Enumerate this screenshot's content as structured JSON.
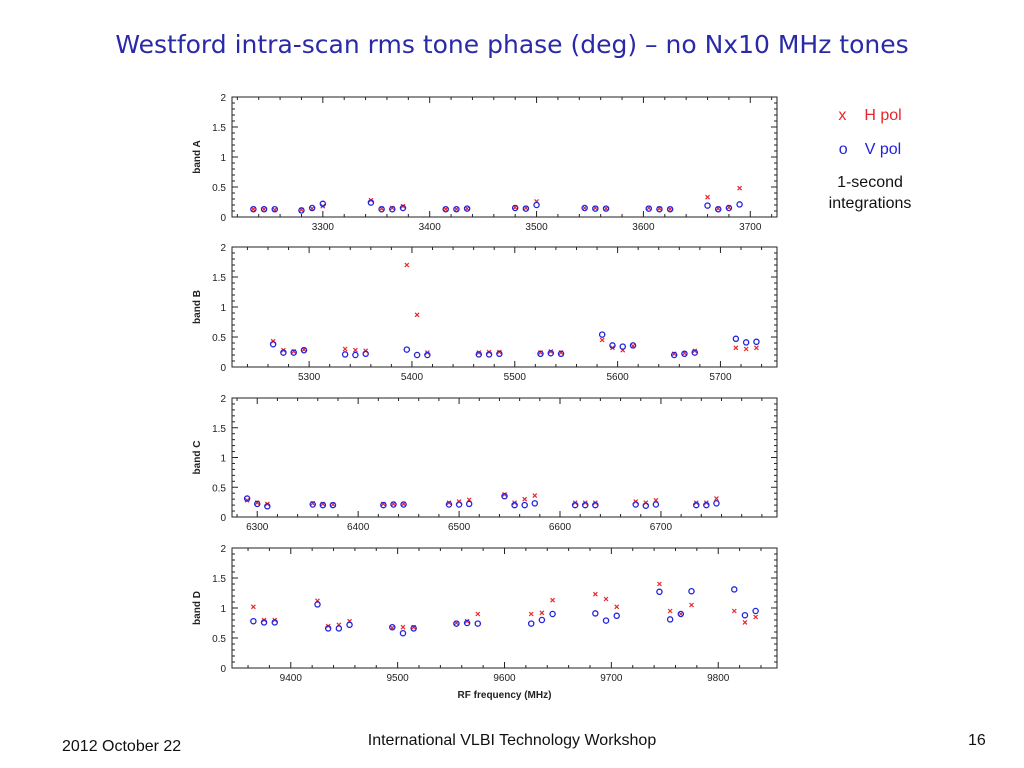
{
  "title": "Westford intra-scan rms tone phase (deg) –  no Nx10 MHz tones",
  "legend": {
    "h_symbol": "x",
    "h_label": "H pol",
    "v_symbol": "o",
    "v_label": "V pol",
    "note_line1": "1-second",
    "note_line2": "integrations"
  },
  "footer": {
    "date": "2012 October 22",
    "center": "International VLBI Technology Workshop",
    "page": "16"
  },
  "colors": {
    "h_pol": "#e8262b",
    "v_pol": "#2222dd",
    "axis": "#222222",
    "title": "#2a2aa8"
  },
  "chart_data": [
    {
      "type": "scatter",
      "ylabel": "band A",
      "xlabel": "",
      "xlim": [
        3215,
        3725
      ],
      "ylim": [
        0,
        2
      ],
      "xticks": [
        3300,
        3400,
        3500,
        3600,
        3700
      ],
      "yticks": [
        0,
        0.5,
        1,
        1.5,
        2
      ],
      "series": [
        {
          "name": "H pol",
          "marker": "x",
          "x": [
            3235,
            3245,
            3255,
            3280,
            3290,
            3300,
            3345,
            3355,
            3365,
            3375,
            3415,
            3425,
            3435,
            3480,
            3490,
            3500,
            3545,
            3555,
            3565,
            3605,
            3615,
            3625,
            3660,
            3670,
            3680,
            3690
          ],
          "y": [
            0.13,
            0.13,
            0.12,
            0.12,
            0.14,
            0.18,
            0.28,
            0.14,
            0.15,
            0.18,
            0.13,
            0.13,
            0.14,
            0.16,
            0.15,
            0.26,
            0.15,
            0.15,
            0.14,
            0.15,
            0.14,
            0.13,
            0.33,
            0.14,
            0.16,
            0.48
          ]
        },
        {
          "name": "V pol",
          "marker": "o",
          "x": [
            3235,
            3245,
            3255,
            3280,
            3290,
            3300,
            3345,
            3355,
            3365,
            3375,
            3415,
            3425,
            3435,
            3480,
            3490,
            3500,
            3545,
            3555,
            3565,
            3605,
            3615,
            3625,
            3660,
            3670,
            3680,
            3690
          ],
          "y": [
            0.13,
            0.13,
            0.13,
            0.11,
            0.15,
            0.22,
            0.24,
            0.13,
            0.13,
            0.15,
            0.13,
            0.13,
            0.14,
            0.15,
            0.14,
            0.2,
            0.15,
            0.14,
            0.14,
            0.14,
            0.13,
            0.13,
            0.19,
            0.13,
            0.15,
            0.21
          ]
        }
      ]
    },
    {
      "type": "scatter",
      "ylabel": "band B",
      "xlabel": "",
      "xlim": [
        5225,
        5755
      ],
      "ylim": [
        0,
        2
      ],
      "xticks": [
        5300,
        5400,
        5500,
        5600,
        5700
      ],
      "yticks": [
        0,
        0.5,
        1,
        1.5,
        2
      ],
      "series": [
        {
          "name": "H pol",
          "marker": "x",
          "x": [
            5265,
            5275,
            5285,
            5295,
            5335,
            5345,
            5355,
            5395,
            5405,
            5415,
            5465,
            5475,
            5485,
            5525,
            5535,
            5545,
            5585,
            5595,
            5605,
            5615,
            5655,
            5665,
            5675,
            5715,
            5725,
            5735
          ],
          "y": [
            0.43,
            0.28,
            0.26,
            0.29,
            0.3,
            0.28,
            0.27,
            1.7,
            0.87,
            0.24,
            0.24,
            0.25,
            0.25,
            0.24,
            0.26,
            0.24,
            0.45,
            0.32,
            0.28,
            0.35,
            0.22,
            0.23,
            0.27,
            0.32,
            0.3,
            0.32
          ]
        },
        {
          "name": "V pol",
          "marker": "o",
          "x": [
            5265,
            5275,
            5285,
            5295,
            5335,
            5345,
            5355,
            5395,
            5405,
            5415,
            5465,
            5475,
            5485,
            5525,
            5535,
            5545,
            5585,
            5595,
            5605,
            5615,
            5655,
            5665,
            5675,
            5715,
            5725,
            5735
          ],
          "y": [
            0.38,
            0.24,
            0.24,
            0.28,
            0.21,
            0.2,
            0.22,
            0.29,
            0.2,
            0.2,
            0.21,
            0.21,
            0.22,
            0.22,
            0.23,
            0.22,
            0.54,
            0.36,
            0.34,
            0.36,
            0.2,
            0.22,
            0.24,
            0.47,
            0.41,
            0.42
          ]
        }
      ]
    },
    {
      "type": "scatter",
      "ylabel": "band C",
      "xlabel": "",
      "xlim": [
        6275,
        6815
      ],
      "ylim": [
        0,
        2
      ],
      "xticks": [
        6300,
        6400,
        6500,
        6600,
        6700
      ],
      "yticks": [
        0,
        0.5,
        1,
        1.5,
        2
      ],
      "series": [
        {
          "name": "H pol",
          "marker": "x",
          "x": [
            6290,
            6300,
            6310,
            6355,
            6365,
            6375,
            6425,
            6435,
            6445,
            6490,
            6500,
            6510,
            6545,
            6555,
            6565,
            6575,
            6615,
            6625,
            6635,
            6675,
            6685,
            6695,
            6735,
            6745,
            6755
          ],
          "y": [
            0.28,
            0.24,
            0.22,
            0.23,
            0.22,
            0.21,
            0.22,
            0.22,
            0.22,
            0.24,
            0.26,
            0.29,
            0.38,
            0.24,
            0.3,
            0.36,
            0.24,
            0.24,
            0.24,
            0.26,
            0.24,
            0.28,
            0.24,
            0.24,
            0.31
          ]
        },
        {
          "name": "V pol",
          "marker": "o",
          "x": [
            6290,
            6300,
            6310,
            6355,
            6365,
            6375,
            6425,
            6435,
            6445,
            6490,
            6500,
            6510,
            6545,
            6555,
            6565,
            6575,
            6615,
            6625,
            6635,
            6675,
            6685,
            6695,
            6735,
            6745,
            6755
          ],
          "y": [
            0.31,
            0.22,
            0.18,
            0.21,
            0.2,
            0.2,
            0.2,
            0.21,
            0.21,
            0.21,
            0.21,
            0.22,
            0.35,
            0.2,
            0.2,
            0.23,
            0.2,
            0.2,
            0.2,
            0.21,
            0.19,
            0.21,
            0.2,
            0.2,
            0.23
          ]
        }
      ]
    },
    {
      "type": "scatter",
      "ylabel": "band D",
      "xlabel": "RF frequency (MHz)",
      "xlim": [
        9345,
        9855
      ],
      "ylim": [
        0,
        2
      ],
      "xticks": [
        9400,
        9500,
        9600,
        9700,
        9800
      ],
      "yticks": [
        0,
        0.5,
        1,
        1.5,
        2
      ],
      "series": [
        {
          "name": "H pol",
          "marker": "x",
          "x": [
            9365,
            9375,
            9385,
            9425,
            9435,
            9445,
            9455,
            9495,
            9505,
            9515,
            9555,
            9565,
            9575,
            9625,
            9635,
            9645,
            9685,
            9695,
            9705,
            9745,
            9755,
            9765,
            9775,
            9815,
            9825,
            9835
          ],
          "y": [
            1.02,
            0.8,
            0.8,
            1.12,
            0.7,
            0.72,
            0.78,
            0.67,
            0.68,
            0.68,
            0.75,
            0.78,
            0.9,
            0.9,
            0.92,
            1.13,
            1.23,
            1.15,
            1.02,
            1.4,
            0.95,
            0.9,
            1.05,
            0.95,
            0.76,
            0.85
          ]
        },
        {
          "name": "V pol",
          "marker": "o",
          "x": [
            9365,
            9375,
            9385,
            9425,
            9435,
            9445,
            9455,
            9495,
            9505,
            9515,
            9555,
            9565,
            9575,
            9625,
            9635,
            9645,
            9685,
            9695,
            9705,
            9745,
            9755,
            9765,
            9775,
            9815,
            9825,
            9835
          ],
          "y": [
            0.78,
            0.76,
            0.76,
            1.06,
            0.66,
            0.66,
            0.72,
            0.68,
            0.58,
            0.66,
            0.74,
            0.75,
            0.74,
            0.74,
            0.8,
            0.9,
            0.91,
            0.79,
            0.87,
            1.27,
            0.81,
            0.9,
            1.28,
            1.31,
            0.88,
            0.95
          ]
        }
      ]
    }
  ]
}
